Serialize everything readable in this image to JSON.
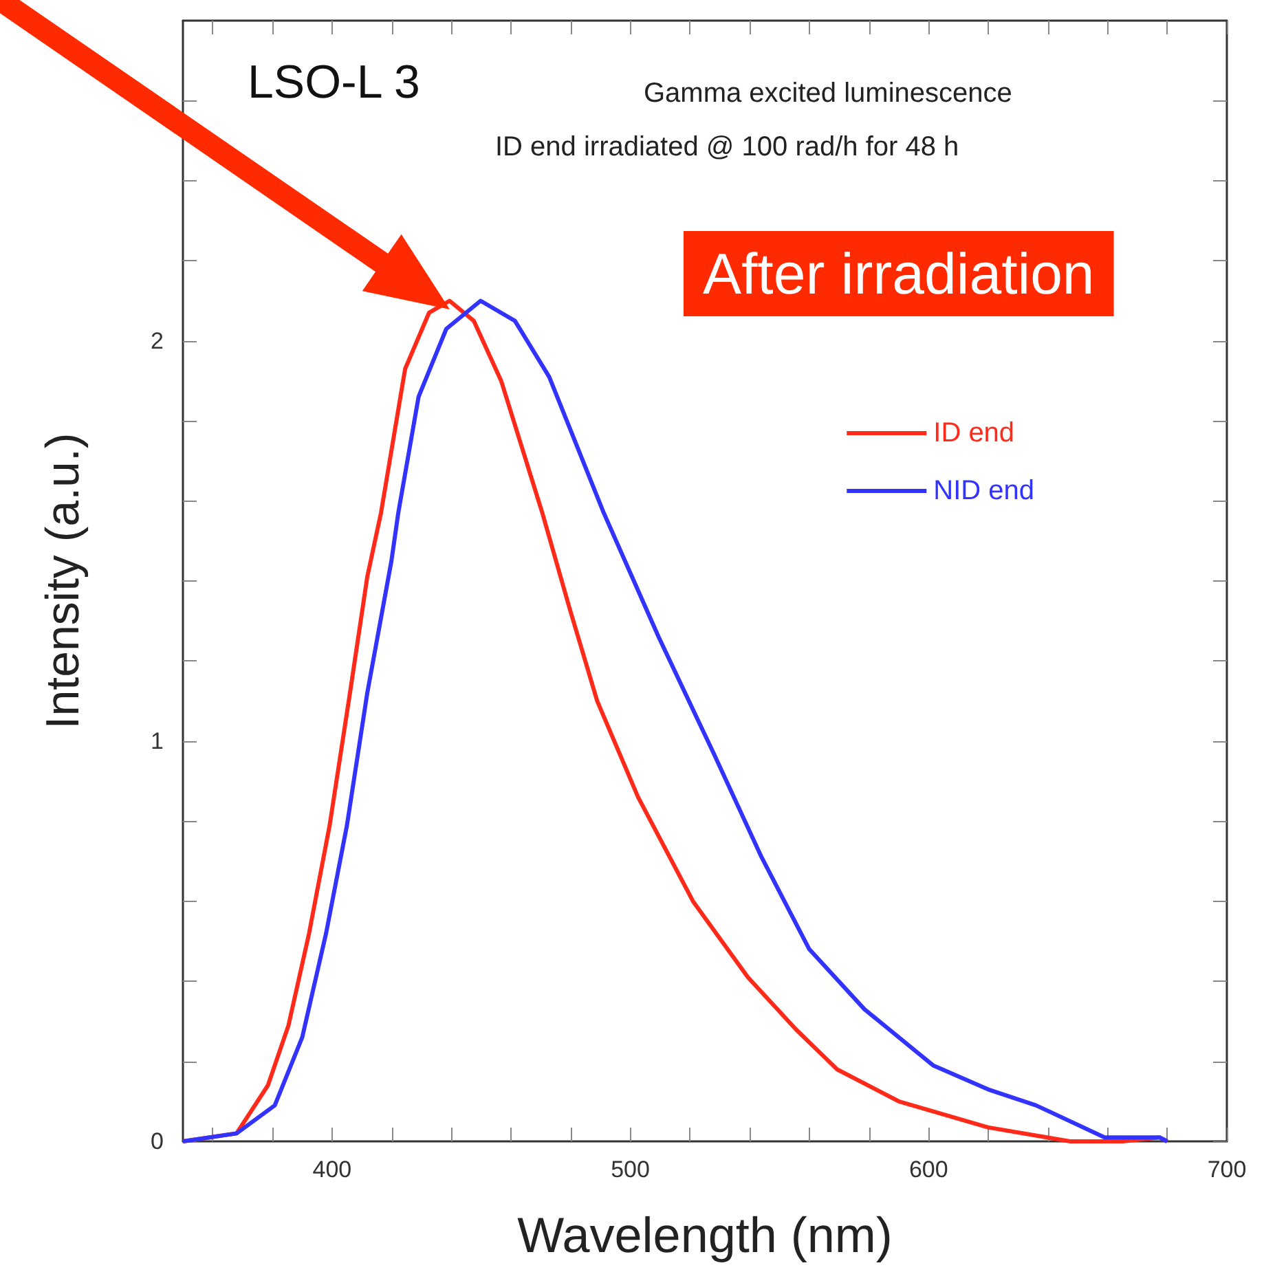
{
  "chart_data": {
    "type": "line",
    "title": "LSO-L 3",
    "xlabel": "Wavelength (nm)",
    "ylabel": "Intensity (a.u.)",
    "annotations": [
      "Gamma excited luminescence",
      "ID end irradiated @ 100 rad/h for 48 h",
      "After irradiation"
    ],
    "xlim": [
      350,
      700
    ],
    "ylim": [
      0,
      2.8
    ],
    "xticks": [
      {
        "value": 360,
        "label": null
      },
      {
        "value": 380,
        "label": null
      },
      400,
      {
        "value": 420,
        "label": null
      },
      {
        "value": 440,
        "label": null
      },
      {
        "value": 460,
        "label": null
      },
      {
        "value": 480,
        "label": null
      },
      500,
      {
        "value": 520,
        "label": null
      },
      {
        "value": 540,
        "label": null
      },
      {
        "value": 560,
        "label": null
      },
      {
        "value": 580,
        "label": null
      },
      600,
      {
        "value": 620,
        "label": null
      },
      {
        "value": 640,
        "label": null
      },
      {
        "value": 660,
        "label": null
      },
      {
        "value": 680,
        "label": null
      },
      700
    ],
    "yticks": [
      0,
      {
        "value": 0.2,
        "label": null
      },
      {
        "value": 0.4,
        "label": null
      },
      {
        "value": 0.6,
        "label": null
      },
      {
        "value": 0.8,
        "label": null
      },
      1,
      {
        "value": 1.2,
        "label": null
      },
      {
        "value": 1.4,
        "label": null
      },
      {
        "value": 1.6,
        "label": null
      },
      {
        "value": 1.8,
        "label": null
      },
      2,
      {
        "value": 2.2,
        "label": null
      },
      {
        "value": 2.4,
        "label": null
      },
      {
        "value": 2.6,
        "label": null
      }
    ],
    "legend": "top right",
    "marker": "none",
    "series": [
      {
        "name": "ID end",
        "color": "#ff2a1a",
        "x": [
          350,
          368,
          378.5,
          385.4,
          392.3,
          399.2,
          406,
          411.8,
          416.4,
          424.5,
          432.5,
          439.4,
          447.5,
          456.7,
          470.5,
          479.7,
          488.9,
          502.6,
          521,
          539.4,
          555.5,
          569.3,
          590,
          619.9,
          647.5,
          665,
          677.4,
          680
        ],
        "values": [
          0,
          0.02,
          0.14,
          0.29,
          0.52,
          0.79,
          1.12,
          1.41,
          1.57,
          1.93,
          2.07,
          2.1,
          2.05,
          1.9,
          1.57,
          1.33,
          1.1,
          0.86,
          0.6,
          0.41,
          0.28,
          0.18,
          0.1,
          0.035,
          0,
          0,
          0.01,
          0
        ]
      },
      {
        "name": "NID end",
        "color": "#3333ff",
        "x": [
          350,
          368,
          380.8,
          390,
          398,
          405,
          411.8,
          419.9,
          422.2,
          429,
          438.3,
          449.8,
          461.3,
          472.8,
          491.1,
          509.5,
          527.9,
          544,
          560,
          578.5,
          601.5,
          619.9,
          636,
          659,
          677.4,
          680
        ],
        "values": [
          0,
          0.02,
          0.09,
          0.26,
          0.52,
          0.79,
          1.12,
          1.45,
          1.57,
          1.86,
          2.03,
          2.1,
          2.05,
          1.91,
          1.57,
          1.26,
          0.97,
          0.71,
          0.48,
          0.33,
          0.19,
          0.13,
          0.09,
          0.01,
          0.01,
          0
        ]
      }
    ]
  }
}
